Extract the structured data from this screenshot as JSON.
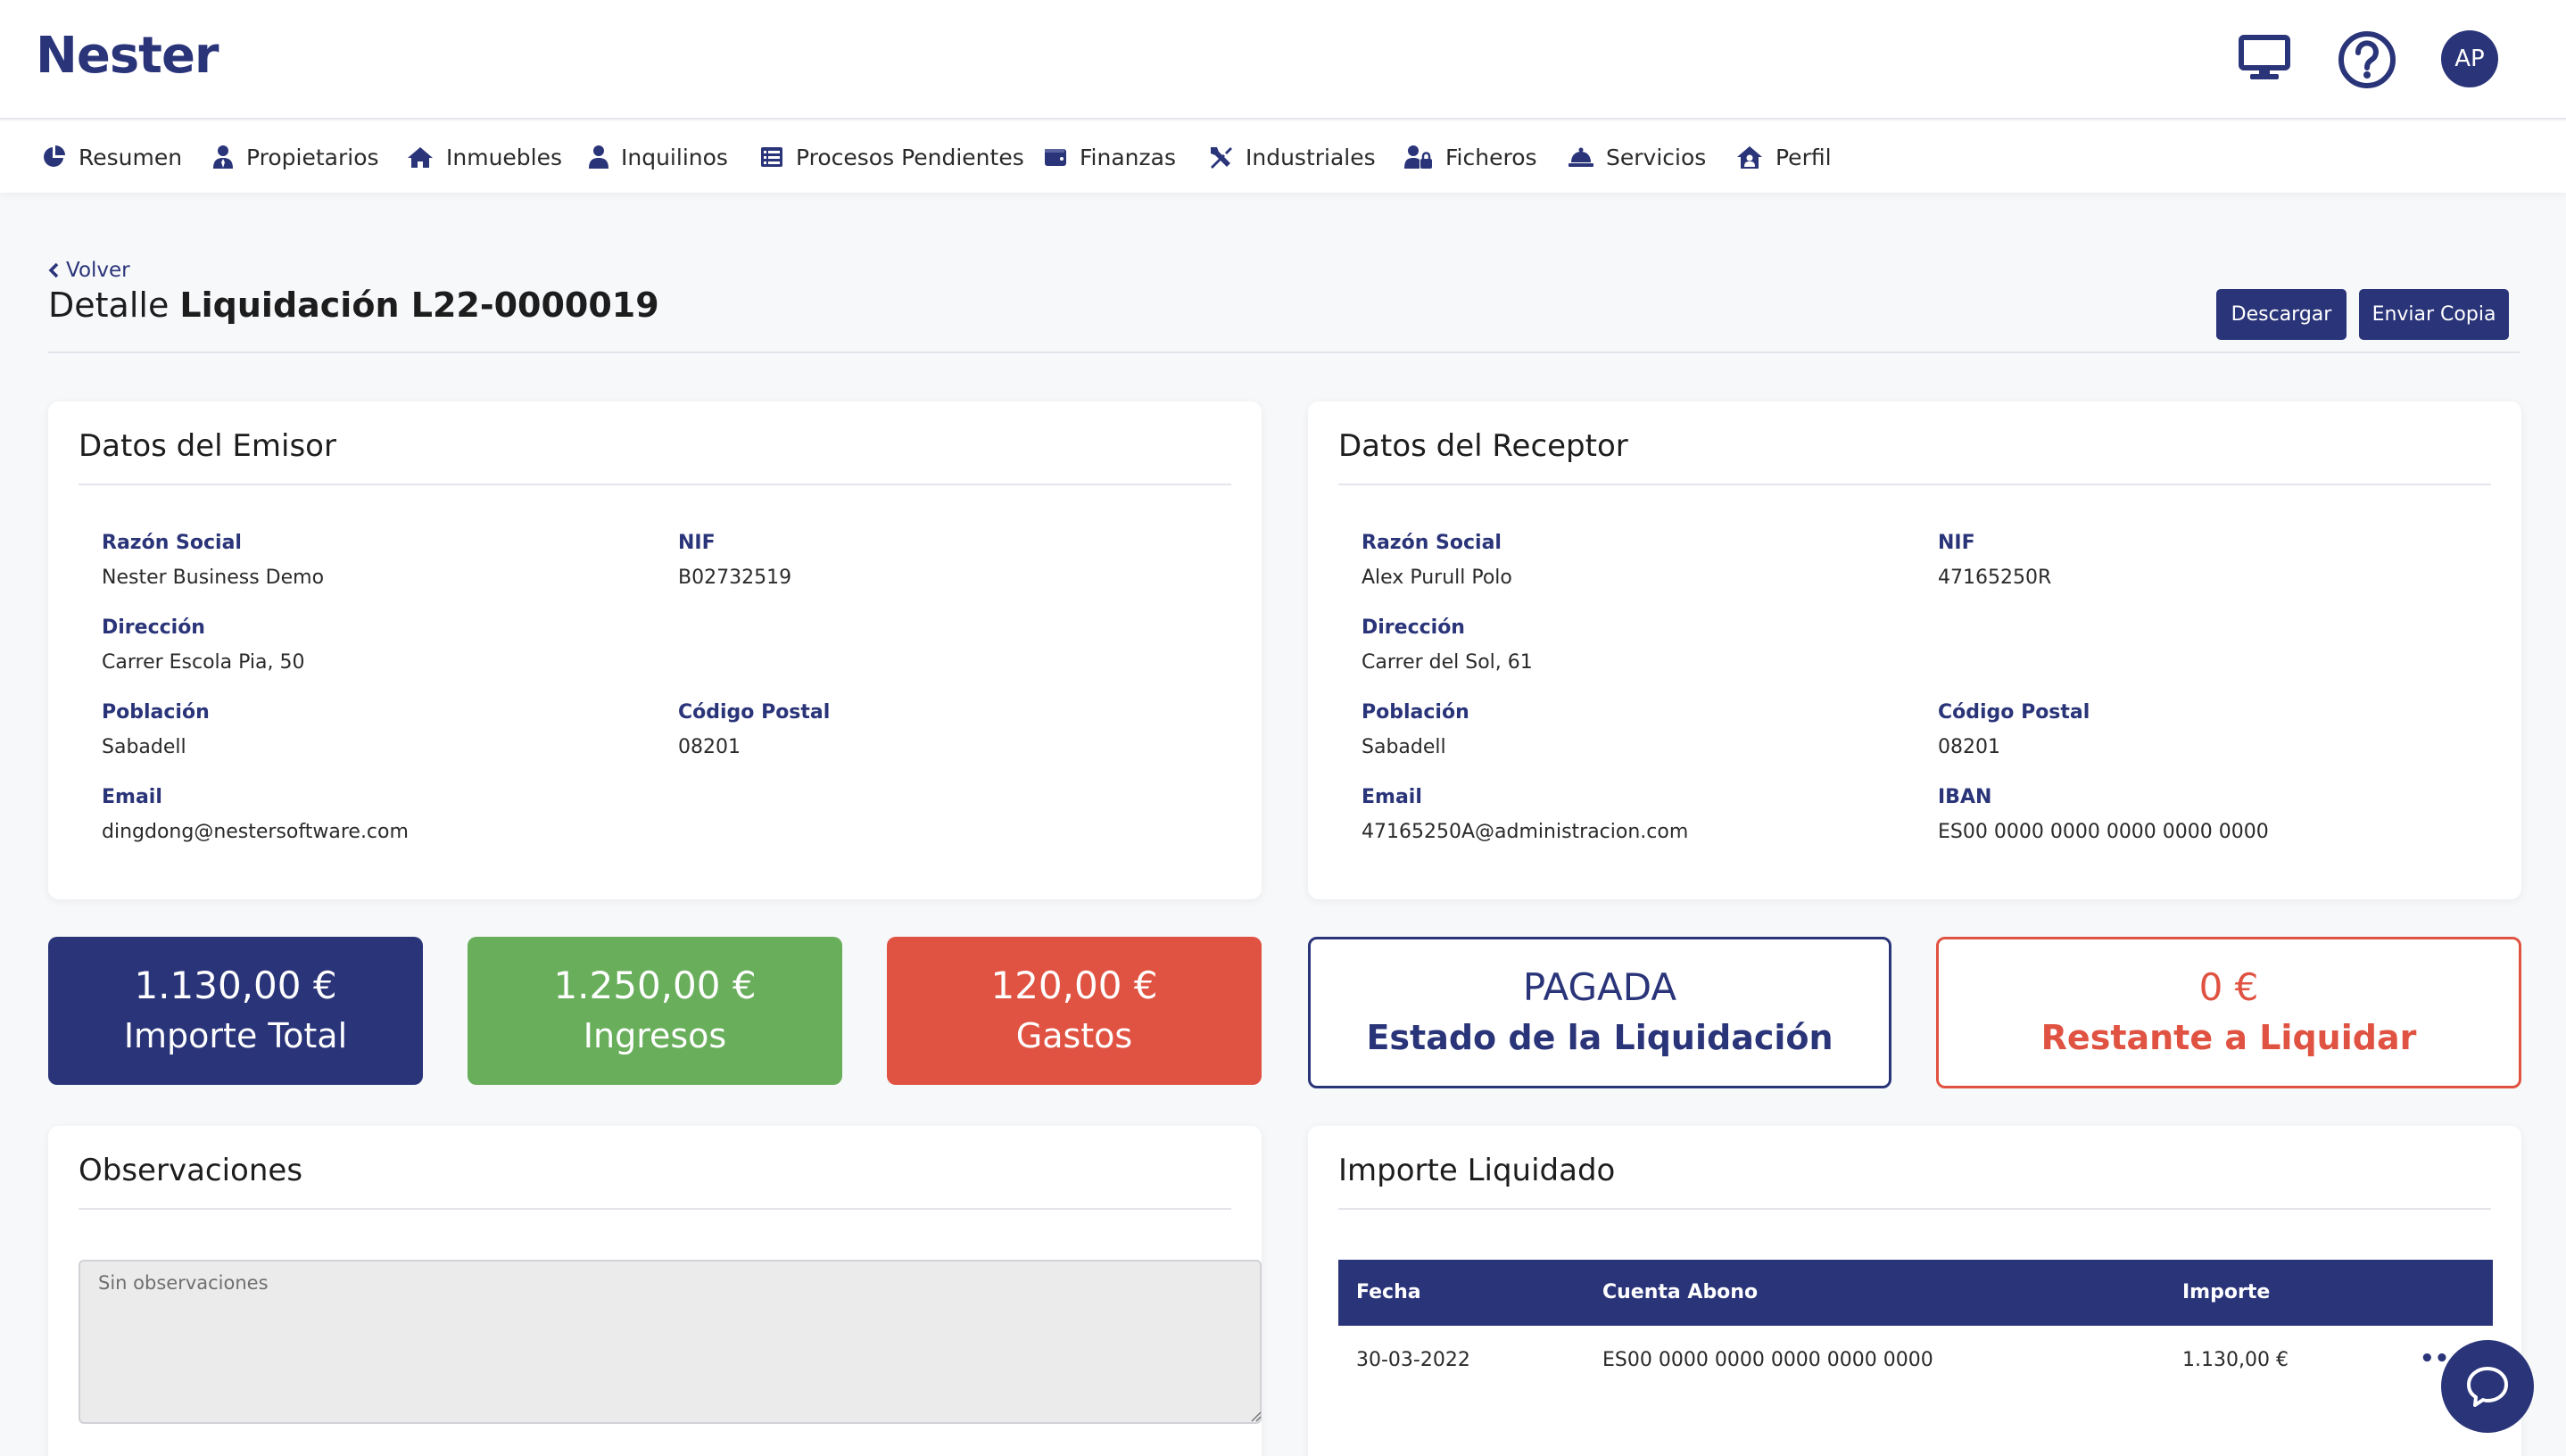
{
  "app": {
    "logo": "Nester"
  },
  "header": {
    "avatar_initials": "AP",
    "icons": [
      "monitor-icon",
      "help-icon"
    ]
  },
  "nav": [
    {
      "label": "Resumen",
      "icon": "pie-chart-icon"
    },
    {
      "label": "Propietarios",
      "icon": "user-tie-icon"
    },
    {
      "label": "Inmuebles",
      "icon": "home-icon"
    },
    {
      "label": "Inquilinos",
      "icon": "user-icon"
    },
    {
      "label": "Procesos Pendientes",
      "icon": "list-icon"
    },
    {
      "label": "Finanzas",
      "icon": "wallet-icon"
    },
    {
      "label": "Industriales",
      "icon": "tools-icon"
    },
    {
      "label": "Ficheros",
      "icon": "user-lock-icon"
    },
    {
      "label": "Servicios",
      "icon": "service-bell-icon"
    },
    {
      "label": "Perfil",
      "icon": "house-user-icon"
    }
  ],
  "page": {
    "back_label": "Volver",
    "title_prefix": "Detalle",
    "title_bold": "Liquidación L22-0000019",
    "download_label": "Descargar",
    "send_copy_label": "Enviar Copia"
  },
  "emisor": {
    "title": "Datos del Emisor",
    "fields": {
      "razon_social": {
        "label": "Razón Social",
        "value": "Nester Business Demo"
      },
      "nif": {
        "label": "NIF",
        "value": "B02732519"
      },
      "direccion": {
        "label": "Dirección",
        "value": "Carrer Escola Pia, 50"
      },
      "poblacion": {
        "label": "Población",
        "value": "Sabadell"
      },
      "codigo_postal": {
        "label": "Código Postal",
        "value": "08201"
      },
      "email": {
        "label": "Email",
        "value": "dingdong@nestersoftware.com"
      }
    }
  },
  "receptor": {
    "title": "Datos del Receptor",
    "fields": {
      "razon_social": {
        "label": "Razón Social",
        "value": "Alex Purull Polo"
      },
      "nif": {
        "label": "NIF",
        "value": "47165250R"
      },
      "direccion": {
        "label": "Dirección",
        "value": "Carrer del Sol, 61"
      },
      "poblacion": {
        "label": "Población",
        "value": "Sabadell"
      },
      "codigo_postal": {
        "label": "Código Postal",
        "value": "08201"
      },
      "email": {
        "label": "Email",
        "value": "47165250A@administracion.com"
      },
      "iban": {
        "label": "IBAN",
        "value": "ES00 0000 0000 0000 0000 0000"
      }
    }
  },
  "stats": {
    "total": {
      "value": "1.130,00 €",
      "label": "Importe Total",
      "color": "#2a3479"
    },
    "ingresos": {
      "value": "1.250,00 €",
      "label": "Ingresos",
      "color": "#68ae5b"
    },
    "gastos": {
      "value": "120,00 €",
      "label": "Gastos",
      "color": "#e05241"
    },
    "estado": {
      "value": "PAGADA",
      "label": "Estado de la Liquidación",
      "color": "#2a3479"
    },
    "restante": {
      "value": "0 €",
      "label": "Restante a Liquidar",
      "color": "#e05241"
    }
  },
  "observaciones": {
    "title": "Observaciones",
    "placeholder": "Sin observaciones"
  },
  "importe_liquidado": {
    "title": "Importe Liquidado",
    "columns": [
      "Fecha",
      "Cuenta Abono",
      "Importe"
    ],
    "rows": [
      {
        "fecha": "30-03-2022",
        "cuenta": "ES00 0000 0000 0000 0000 0000",
        "importe": "1.130,00 €",
        "menu": "•••"
      }
    ]
  }
}
